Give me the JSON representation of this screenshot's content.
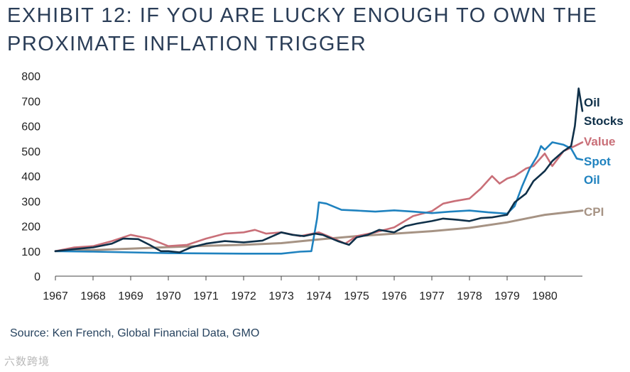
{
  "title": {
    "line1": "EXHIBIT 12: IF YOU ARE LUCKY ENOUGH TO OWN THE",
    "line2": "PROXIMATE INFLATION TRIGGER"
  },
  "source": "Source: Ken French, Global Financial Data, GMO",
  "watermark": "六数跨境",
  "chart_data": {
    "type": "line",
    "title": "EXHIBIT 12: IF YOU ARE LUCKY ENOUGH TO OWN THE PROXIMATE INFLATION TRIGGER",
    "xlabel": "",
    "ylabel": "",
    "xlim": [
      1967,
      1981
    ],
    "ylim": [
      0,
      800
    ],
    "yticks": [
      0,
      100,
      200,
      300,
      400,
      500,
      600,
      700,
      800
    ],
    "xticks": [
      "1967",
      "1968",
      "1969",
      "1970",
      "1971",
      "1972",
      "1973",
      "1974",
      "1975",
      "1976",
      "1977",
      "1978",
      "1979",
      "1980"
    ],
    "legend": "right-end labels",
    "series": [
      {
        "name": "Oil Stocks",
        "label_lines": [
          "Oil",
          "Stocks"
        ],
        "color": "#0f3049",
        "x": [
          1967,
          1967.5,
          1968,
          1968.5,
          1968.8,
          1969.2,
          1969.5,
          1969.8,
          1970,
          1970.3,
          1970.6,
          1971,
          1971.5,
          1972,
          1972.5,
          1973,
          1973.3,
          1973.6,
          1973.9,
          1974.1,
          1974.5,
          1974.8,
          1975,
          1975.3,
          1975.6,
          1976,
          1976.3,
          1976.6,
          1977,
          1977.3,
          1977.7,
          1978,
          1978.3,
          1978.6,
          1978.8,
          1979,
          1979.2,
          1979.5,
          1979.7,
          1980,
          1980.2,
          1980.5,
          1980.7,
          1980.8,
          1980.9,
          1981
        ],
        "values": [
          100,
          108,
          115,
          130,
          150,
          148,
          125,
          100,
          100,
          95,
          115,
          130,
          140,
          135,
          142,
          175,
          165,
          160,
          170,
          165,
          140,
          125,
          155,
          165,
          185,
          175,
          200,
          210,
          220,
          230,
          225,
          220,
          232,
          235,
          240,
          245,
          295,
          330,
          380,
          420,
          460,
          500,
          520,
          600,
          750,
          660
        ]
      },
      {
        "name": "Value",
        "label_lines": [
          "Value"
        ],
        "color": "#c96f78",
        "x": [
          1967,
          1967.5,
          1968,
          1968.5,
          1969,
          1969.5,
          1970,
          1970.5,
          1971,
          1971.5,
          1972,
          1972.3,
          1972.6,
          1973,
          1973.5,
          1974,
          1974.4,
          1974.7,
          1975,
          1975.5,
          1976,
          1976.5,
          1977,
          1977.3,
          1977.6,
          1978,
          1978.3,
          1978.6,
          1978.8,
          1979,
          1979.2,
          1979.5,
          1979.7,
          1980,
          1980.2,
          1980.5,
          1980.8,
          1981
        ],
        "values": [
          100,
          115,
          120,
          140,
          165,
          150,
          120,
          125,
          150,
          170,
          175,
          185,
          170,
          175,
          160,
          175,
          150,
          130,
          160,
          175,
          195,
          240,
          260,
          290,
          300,
          310,
          350,
          400,
          370,
          390,
          400,
          430,
          440,
          490,
          440,
          500,
          520,
          535
        ]
      },
      {
        "name": "Spot Oil",
        "label_lines": [
          "Spot",
          "Oil"
        ],
        "color": "#1f82bf",
        "x": [
          1967,
          1968,
          1969,
          1970,
          1971,
          1972,
          1973,
          1973.5,
          1973.8,
          1973.95,
          1974,
          1974.2,
          1974.6,
          1975,
          1975.5,
          1976,
          1976.5,
          1977,
          1977.5,
          1978,
          1978.5,
          1979,
          1979.2,
          1979.4,
          1979.6,
          1979.8,
          1979.9,
          1980,
          1980.2,
          1980.5,
          1980.7,
          1980.85,
          1981
        ],
        "values": [
          100,
          98,
          95,
          92,
          91,
          90,
          90,
          98,
          100,
          230,
          295,
          290,
          265,
          262,
          258,
          263,
          258,
          252,
          258,
          262,
          255,
          250,
          280,
          360,
          430,
          480,
          520,
          505,
          535,
          525,
          510,
          470,
          465
        ]
      },
      {
        "name": "CPI",
        "label_lines": [
          "CPI"
        ],
        "color": "#a69384",
        "x": [
          1967,
          1968,
          1969,
          1970,
          1971,
          1972,
          1973,
          1974,
          1975,
          1976,
          1977,
          1978,
          1979,
          1980,
          1981
        ],
        "values": [
          100,
          104,
          110,
          116,
          121,
          125,
          132,
          147,
          160,
          170,
          180,
          193,
          215,
          245,
          262
        ]
      }
    ]
  }
}
